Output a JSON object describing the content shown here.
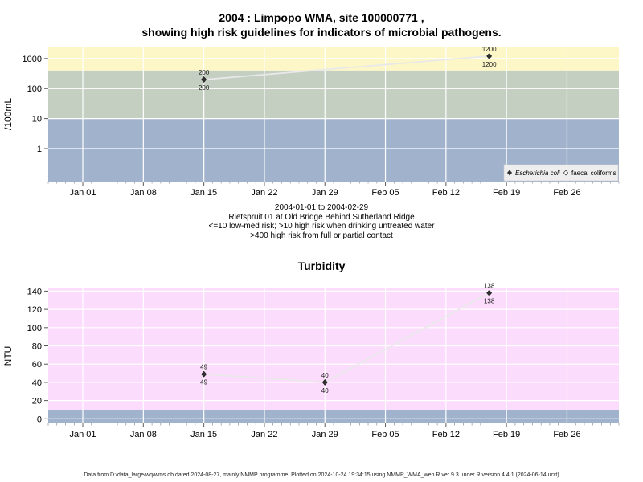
{
  "chart_data": [
    {
      "type": "line",
      "title_line1": "2004 : Limpopo WMA, site 100000771 ,",
      "title_line2": "showing high risk guidelines for indicators of microbial pathogens.",
      "ylabel": "/100mL",
      "xlabel": "",
      "y_scale": "log",
      "ylim": [
        0.08,
        2500
      ],
      "xlim": [
        "2003-12-28",
        "2004-03-03"
      ],
      "y_ticks": [
        {
          "value": 1,
          "label": "1"
        },
        {
          "value": 10,
          "label": "10"
        },
        {
          "value": 100,
          "label": "100"
        },
        {
          "value": 1000,
          "label": "1000"
        }
      ],
      "x_ticks": [
        {
          "date": "2004-01-01",
          "label": "Jan 01"
        },
        {
          "date": "2004-01-08",
          "label": "Jan 08"
        },
        {
          "date": "2004-01-15",
          "label": "Jan 15"
        },
        {
          "date": "2004-01-22",
          "label": "Jan 22"
        },
        {
          "date": "2004-01-29",
          "label": "Jan 29"
        },
        {
          "date": "2004-02-05",
          "label": "Feb 05"
        },
        {
          "date": "2004-02-12",
          "label": "Feb 12"
        },
        {
          "date": "2004-02-19",
          "label": "Feb 19"
        },
        {
          "date": "2004-02-26",
          "label": "Feb 26"
        }
      ],
      "bands": [
        {
          "from": 0.08,
          "to": 10,
          "color": "#a1b3cc"
        },
        {
          "from": 10,
          "to": 400,
          "color": "#c4cfc2"
        },
        {
          "from": 400,
          "to": 2500,
          "color": "#fdf6c6"
        }
      ],
      "series": [
        {
          "name": "Escherichia coli",
          "marker": "filled-diamond",
          "points": [
            {
              "date": "2004-01-15",
              "value": 200,
              "label": "200"
            },
            {
              "date": "2004-02-17",
              "value": 1200,
              "label": "1200"
            }
          ]
        }
      ],
      "legend": {
        "placement": "bottom-right",
        "entries": [
          {
            "name": "Escherichia coli",
            "marker": "filled-diamond",
            "italic": true
          },
          {
            "name": "faecal coliforms",
            "marker": "open-diamond",
            "italic": false
          }
        ]
      },
      "notes": [
        "2004-01-01 to 2004-02-29",
        "Rietspruit 01 at Old Bridge Behind Sutherland Ridge",
        "<=10 low-med risk; >10 high risk when drinking untreated water",
        ">400 high risk from full or partial contact"
      ]
    },
    {
      "type": "line",
      "title": "Turbidity",
      "ylabel": "NTU",
      "xlabel": "",
      "y_scale": "linear",
      "ylim": [
        -5,
        143
      ],
      "xlim": [
        "2003-12-28",
        "2004-03-03"
      ],
      "y_ticks": [
        {
          "value": 0,
          "label": "0"
        },
        {
          "value": 20,
          "label": "20"
        },
        {
          "value": 40,
          "label": "40"
        },
        {
          "value": 60,
          "label": "60"
        },
        {
          "value": 80,
          "label": "80"
        },
        {
          "value": 100,
          "label": "100"
        },
        {
          "value": 120,
          "label": "120"
        },
        {
          "value": 140,
          "label": "140"
        }
      ],
      "x_ticks": [
        {
          "date": "2004-01-01",
          "label": "Jan 01"
        },
        {
          "date": "2004-01-08",
          "label": "Jan 08"
        },
        {
          "date": "2004-01-15",
          "label": "Jan 15"
        },
        {
          "date": "2004-01-22",
          "label": "Jan 22"
        },
        {
          "date": "2004-01-29",
          "label": "Jan 29"
        },
        {
          "date": "2004-02-05",
          "label": "Feb 05"
        },
        {
          "date": "2004-02-12",
          "label": "Feb 12"
        },
        {
          "date": "2004-02-19",
          "label": "Feb 19"
        },
        {
          "date": "2004-02-26",
          "label": "Feb 26"
        }
      ],
      "bands": [
        {
          "from": -5,
          "to": 10,
          "color": "#a1b3cc"
        },
        {
          "from": 10,
          "to": 143,
          "color": "#fcdcfc"
        }
      ],
      "series": [
        {
          "marker": "filled-diamond",
          "points": [
            {
              "date": "2004-01-15",
              "value": 49,
              "label": "49"
            },
            {
              "date": "2004-01-29",
              "value": 40,
              "label": "40"
            },
            {
              "date": "2004-02-17",
              "value": 138,
              "label": "138"
            }
          ]
        }
      ]
    }
  ],
  "footer": "Data from D:/data_large/wq/wms.db dated 2024-08-27, mainly NMMP programme. Plotted on 2024-10-24 19:34:15 using NMMP_WMA_web.R ver 9.3 under R version 4.4.1 (2024-06-14 ucrt)"
}
